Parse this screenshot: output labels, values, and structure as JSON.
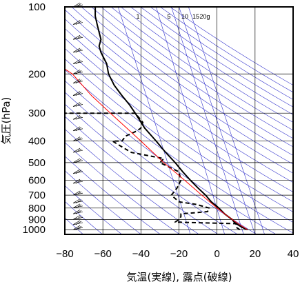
{
  "chart_data": {
    "type": "line",
    "title": "",
    "xlabel": "気温(実線), 露点(破線)",
    "ylabel": "気圧(hPa)",
    "xlim": [
      -80,
      40
    ],
    "ylim": [
      1050,
      100
    ],
    "y_scale": "log",
    "x_ticks": [
      "−80",
      "−60",
      "−40",
      "−20",
      "0",
      "20",
      "40"
    ],
    "y_ticks": [
      "100",
      "200",
      "300",
      "400",
      "500",
      "600",
      "700",
      "800",
      "900",
      "1000"
    ],
    "mixing_ratio_labels": [
      "1",
      "5",
      "10",
      "15",
      "20g"
    ],
    "grid": true,
    "colors": {
      "temperature": "#000000",
      "dewpoint": "#000000",
      "parcel": "#ff0000",
      "background_lines": "#3333cc",
      "grid": "#000000"
    },
    "series": [
      {
        "name": "",
        "style": "solid",
        "points": [
          {
            "p": 1000,
            "t": 16
          },
          {
            "p": 975,
            "t": 13
          },
          {
            "p": 950,
            "t": 11
          },
          {
            "p": 925,
            "t": 9
          },
          {
            "p": 900,
            "t": 8
          },
          {
            "p": 875,
            "t": 6
          },
          {
            "p": 850,
            "t": 4
          },
          {
            "p": 800,
            "t": 1
          },
          {
            "p": 750,
            "t": -3
          },
          {
            "p": 700,
            "t": -6
          },
          {
            "p": 650,
            "t": -10
          },
          {
            "p": 600,
            "t": -14
          },
          {
            "p": 550,
            "t": -18
          },
          {
            "p": 500,
            "t": -22
          },
          {
            "p": 450,
            "t": -27
          },
          {
            "p": 400,
            "t": -32
          },
          {
            "p": 350,
            "t": -38
          },
          {
            "p": 300,
            "t": -43
          },
          {
            "p": 275,
            "t": -46
          },
          {
            "p": 250,
            "t": -50
          },
          {
            "p": 225,
            "t": -54
          },
          {
            "p": 200,
            "t": -57
          },
          {
            "p": 180,
            "t": -58
          },
          {
            "p": 160,
            "t": -61
          },
          {
            "p": 150,
            "t": -62
          },
          {
            "p": 140,
            "t": -61
          },
          {
            "p": 130,
            "t": -62
          },
          {
            "p": 120,
            "t": -63
          },
          {
            "p": 110,
            "t": -64
          },
          {
            "p": 100,
            "t": -64
          }
        ]
      },
      {
        "name": "",
        "style": "dashed",
        "points": [
          {
            "p": 1000,
            "t": 12
          },
          {
            "p": 975,
            "t": 10
          },
          {
            "p": 940,
            "t": 10
          },
          {
            "p": 925,
            "t": -22
          },
          {
            "p": 900,
            "t": -20
          },
          {
            "p": 875,
            "t": -19
          },
          {
            "p": 850,
            "t": -19
          },
          {
            "p": 830,
            "t": -5
          },
          {
            "p": 800,
            "t": -4
          },
          {
            "p": 770,
            "t": -11
          },
          {
            "p": 750,
            "t": -20
          },
          {
            "p": 700,
            "t": -24
          },
          {
            "p": 650,
            "t": -21
          },
          {
            "p": 600,
            "t": -19
          },
          {
            "p": 550,
            "t": -20
          },
          {
            "p": 500,
            "t": -30
          },
          {
            "p": 480,
            "t": -28
          },
          {
            "p": 450,
            "t": -45
          },
          {
            "p": 430,
            "t": -49
          },
          {
            "p": 420,
            "t": -51
          },
          {
            "p": 400,
            "t": -55
          },
          {
            "p": 400,
            "t": -50
          },
          {
            "p": 380,
            "t": -48
          },
          {
            "p": 360,
            "t": -42
          },
          {
            "p": 350,
            "t": -40
          },
          {
            "p": 330,
            "t": -39
          },
          {
            "p": 300,
            "t": -43
          },
          {
            "p": 300,
            "t": -80
          }
        ]
      },
      {
        "name": "",
        "style": "solid",
        "color": "#ff0000",
        "points": [
          {
            "p": 1000,
            "t": 16
          },
          {
            "p": 950,
            "t": 12
          },
          {
            "p": 900,
            "t": 8
          },
          {
            "p": 850,
            "t": 4
          },
          {
            "p": 800,
            "t": 0
          },
          {
            "p": 700,
            "t": -8
          },
          {
            "p": 600,
            "t": -17
          },
          {
            "p": 500,
            "t": -28
          },
          {
            "p": 400,
            "t": -40
          },
          {
            "p": 300,
            "t": -56
          },
          {
            "p": 250,
            "t": -66
          },
          {
            "p": 200,
            "t": -76
          },
          {
            "p": 190,
            "t": -80
          }
        ]
      }
    ]
  }
}
